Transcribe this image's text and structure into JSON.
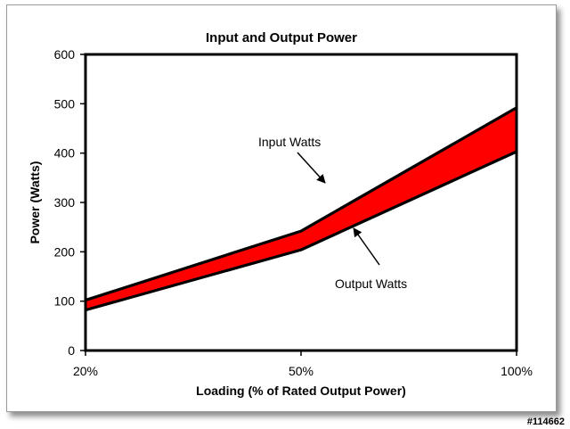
{
  "watermark": "#114662",
  "chart_data": {
    "type": "area",
    "title": "Input and Output Power",
    "xlabel": "Loading (% of Rated Output Power)",
    "ylabel": "Power (Watts)",
    "categories": [
      "20%",
      "50%",
      "100%"
    ],
    "ylim": [
      0,
      600
    ],
    "yticks": [
      0,
      100,
      200,
      300,
      400,
      500,
      600
    ],
    "grid": false,
    "legend": "none",
    "fill_color": "#ff0000",
    "series": [
      {
        "name": "Input Watts",
        "values": [
          102,
          242,
          492
        ]
      },
      {
        "name": "Output Watts",
        "values": [
          82,
          204,
          403
        ]
      }
    ],
    "annotations": [
      {
        "text": "Input Watts",
        "series": "Input Watts"
      },
      {
        "text": "Output Watts",
        "series": "Output Watts"
      }
    ]
  }
}
